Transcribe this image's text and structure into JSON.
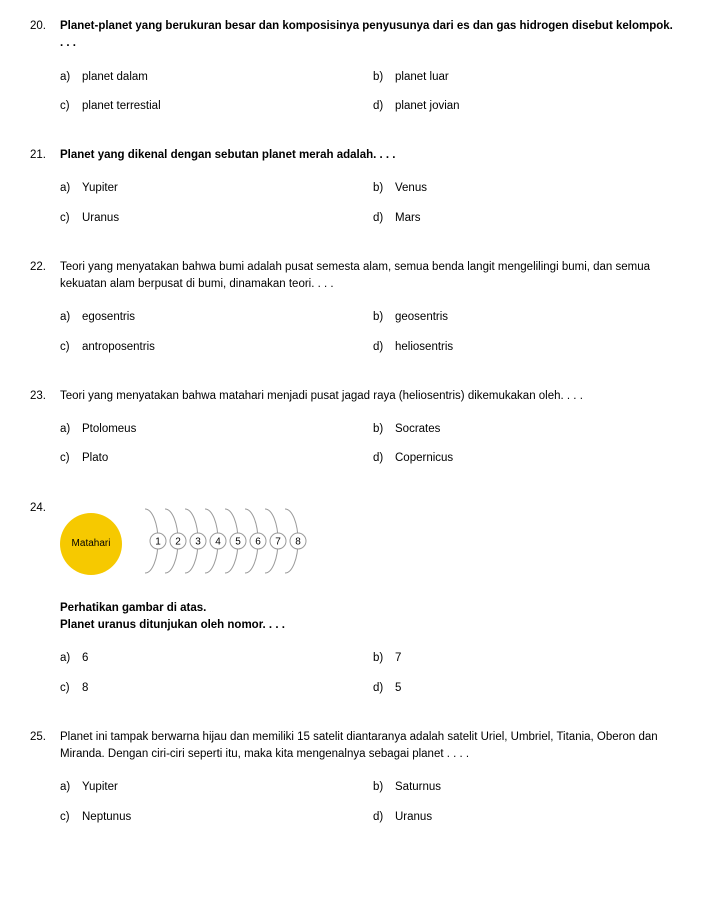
{
  "diagram": {
    "sun_label": "Matahari",
    "sun_bg": "#f6c900",
    "sun_text_color": "#000000",
    "orbit_stroke": "#9a9a9a",
    "orbit_text_color": "#000000",
    "planet_count": 8,
    "planet_labels": [
      "1",
      "2",
      "3",
      "4",
      "5",
      "6",
      "7",
      "8"
    ]
  },
  "questions": [
    {
      "num": "20.",
      "text_bold": true,
      "text": "Planet-planet yang berukuran besar dan komposisinya penyusunya dari es dan gas hidrogen disebut kelompok. . . .",
      "options": {
        "a": "planet dalam",
        "b": "planet luar",
        "c": "planet terrestial",
        "d": "planet jovian"
      }
    },
    {
      "num": "21.",
      "text_bold": true,
      "text": "Planet yang dikenal dengan sebutan planet merah adalah. . . .",
      "options": {
        "a": "Yupiter",
        "b": "Venus",
        "c": "Uranus",
        "d": "Mars"
      }
    },
    {
      "num": "22.",
      "text_bold": false,
      "text": "Teori yang menyatakan bahwa bumi adalah pusat semesta alam, semua benda langit mengelilingi bumi, dan semua kekuatan alam berpusat di bumi, dinamakan teori. . . .",
      "options": {
        "a": "egosentris",
        "b": "geosentris",
        "c": "antroposentris",
        "d": "heliosentris"
      }
    },
    {
      "num": "23.",
      "text_bold": false,
      "text": "Teori yang menyatakan bahwa matahari menjadi pusat jagad raya (heliosentris) dikemukakan oleh. . . .",
      "options": {
        "a": "Ptolomeus",
        "b": "Socrates",
        "c": "Plato",
        "d": "Copernicus"
      }
    },
    {
      "num": "24.",
      "has_diagram": true,
      "mid_line1_bold": true,
      "mid_line1": "Perhatikan gambar di atas.",
      "mid_line2_bold": true,
      "mid_line2": "Planet uranus ditunjukan oleh nomor. . . .",
      "options": {
        "a": "6",
        "b": "7",
        "c": "8",
        "d": "5"
      }
    },
    {
      "num": "25.",
      "text_bold": false,
      "text": "Planet ini tampak berwarna hijau dan memiliki 15 satelit diantaranya adalah satelit Uriel, Umbriel, Titania, Oberon dan Miranda. Dengan ciri-ciri seperti itu, maka kita mengenalnya sebagai planet . . . .",
      "options": {
        "a": "Yupiter",
        "b": "Saturnus",
        "c": "Neptunus",
        "d": "Uranus"
      }
    }
  ],
  "labels": {
    "a": "a)",
    "b": "b)",
    "c": "c)",
    "d": "d)"
  }
}
